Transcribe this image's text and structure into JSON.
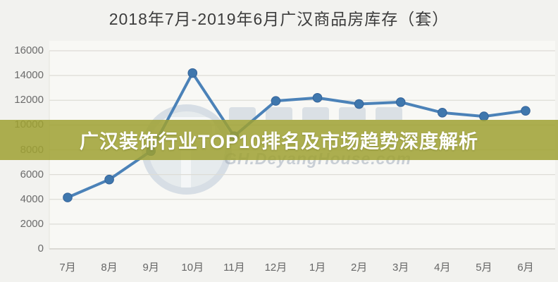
{
  "title": "2018年7月-2019年6月广汉商品房库存（套）",
  "overlay": {
    "banner_text": "广汉装饰行业TOP10排名及市场趋势深度解析",
    "banner_color": "#9fa131",
    "watermark_text": "GH.DeyangHouse.com"
  },
  "chart_data": {
    "type": "line",
    "title": "2018年7月-2019年6月广汉商品房库存（套）",
    "categories": [
      "7月",
      "8月",
      "9月",
      "10月",
      "11月",
      "12月",
      "1月",
      "2月",
      "3月",
      "4月",
      "5月",
      "6月"
    ],
    "values": [
      4150,
      5600,
      7900,
      14200,
      9100,
      11950,
      12200,
      11700,
      11850,
      11000,
      10700,
      11150
    ],
    "series_name": "商品房库存（套）",
    "xlabel": "",
    "ylabel": "",
    "ylim": [
      0,
      16000
    ],
    "yticks": [
      0,
      2000,
      4000,
      6000,
      8000,
      10000,
      12000,
      14000,
      16000
    ],
    "grid": true,
    "legend": false,
    "line_color": "#4b82b8",
    "marker_fill": "#3f77ad",
    "marker_stroke": "#34639a",
    "grid_color": "#dddcd6",
    "axis_color": "#c7c6c0"
  }
}
